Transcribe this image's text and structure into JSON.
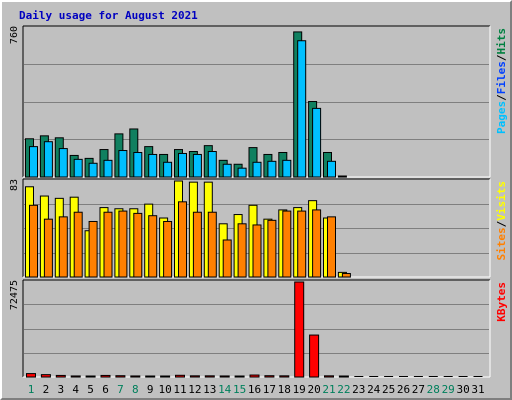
{
  "title": "Daily usage for August 2021",
  "chart_data": [
    {
      "type": "bar",
      "panel": "hits-files-pages",
      "ymax_label": "760",
      "ylim": [
        0,
        760
      ],
      "legend": [
        {
          "text": "Pages",
          "color": "#00c0ff"
        },
        {
          "text": "/",
          "color": "#000000"
        },
        {
          "text": "Files",
          "color": "#0040ff"
        },
        {
          "text": "/",
          "color": "#000000"
        },
        {
          "text": "Hits",
          "color": "#008040"
        }
      ],
      "series": [
        {
          "name": "Hits",
          "color": "#108060",
          "values": [
            195,
            210,
            200,
            110,
            95,
            140,
            220,
            245,
            155,
            115,
            140,
            130,
            160,
            85,
            65,
            150,
            115,
            125,
            740,
            385,
            125,
            5,
            0,
            0,
            0,
            0,
            0,
            0,
            0,
            0,
            0
          ]
        },
        {
          "name": "Files",
          "color": "#00c0ff",
          "values": [
            155,
            180,
            145,
            90,
            70,
            85,
            135,
            125,
            115,
            75,
            120,
            115,
            130,
            65,
            45,
            75,
            80,
            85,
            695,
            350,
            80,
            0,
            0,
            0,
            0,
            0,
            0,
            0,
            0,
            0,
            0
          ]
        }
      ]
    },
    {
      "type": "bar",
      "panel": "visits-sites",
      "ymax_label": "83",
      "ylim": [
        0,
        83
      ],
      "legend": [
        {
          "text": "Sites",
          "color": "#ff8000"
        },
        {
          "text": "/",
          "color": "#000000"
        },
        {
          "text": "Visits",
          "color": "#ffff00"
        }
      ],
      "series": [
        {
          "name": "Visits",
          "color": "#ffff00",
          "values": [
            78,
            70,
            68,
            69,
            40,
            60,
            59,
            59,
            63,
            51,
            83,
            82,
            82,
            46,
            54,
            62,
            50,
            58,
            60,
            66,
            51,
            4,
            0,
            0,
            0,
            0,
            0,
            0,
            0,
            0,
            0
          ]
        },
        {
          "name": "Sites",
          "color": "#ff8000",
          "values": [
            62,
            50,
            52,
            56,
            48,
            56,
            57,
            55,
            53,
            48,
            65,
            56,
            56,
            32,
            46,
            45,
            49,
            57,
            57,
            58,
            52,
            3,
            0,
            0,
            0,
            0,
            0,
            0,
            0,
            0,
            0
          ]
        }
      ]
    },
    {
      "type": "bar",
      "panel": "kbytes",
      "ymax_label": "72475",
      "ylim": [
        0,
        72475
      ],
      "legend": [
        {
          "text": "KBytes",
          "color": "#ff0000"
        }
      ],
      "series": [
        {
          "name": "KBytes",
          "color": "#ff0000",
          "values": [
            2600,
            1800,
            1200,
            800,
            700,
            1200,
            1000,
            800,
            700,
            700,
            1300,
            900,
            900,
            800,
            700,
            1500,
            1000,
            900,
            72475,
            32000,
            900,
            700,
            0,
            0,
            0,
            0,
            0,
            0,
            0,
            0,
            0
          ]
        }
      ]
    }
  ],
  "x_labels": [
    "1",
    "2",
    "3",
    "4",
    "5",
    "6",
    "7",
    "8",
    "9",
    "10",
    "11",
    "12",
    "13",
    "14",
    "15",
    "16",
    "17",
    "18",
    "19",
    "20",
    "21",
    "22",
    "23",
    "24",
    "25",
    "26",
    "27",
    "28",
    "29",
    "30",
    "31"
  ],
  "weekend_days": [
    1,
    7,
    8,
    14,
    15,
    21,
    22,
    28,
    29
  ],
  "colors": {
    "weekday_label": "#000000",
    "weekend_label": "#00805c",
    "plot_background": "#c0c0c0",
    "gridline": "#7f7f7f"
  }
}
